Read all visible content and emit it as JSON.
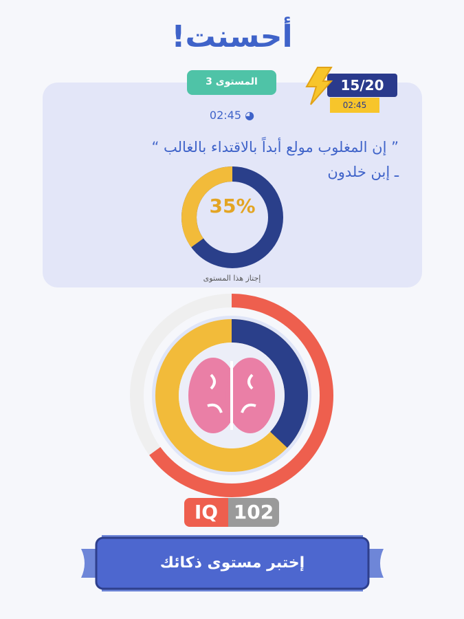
{
  "title": "أحسنت!",
  "level_badge": "المستوى 3",
  "score": {
    "value": "15/20",
    "time": "02:45"
  },
  "timer": {
    "icon": "clock-icon",
    "value": "02:45"
  },
  "quote": {
    "text": "” إن المغلوب مولع أبداً بالاقتداء بالغالب “",
    "author": "ـ إبن خلدون"
  },
  "progress": {
    "percent_label": "35%",
    "percent": 35,
    "caption": "إجتاز هذا المستوى"
  },
  "iq": {
    "label": "IQ",
    "value": "102",
    "outer_ring_fraction": 0.65,
    "inner_ring_fraction": 0.37
  },
  "cta_button": "إختبر مستوى ذكائك",
  "colors": {
    "accent": "#3f63c9",
    "navy": "#2a3a8c",
    "yellow": "#f2bb3a",
    "red": "#ee5f4e",
    "green": "#4fc3a7",
    "pink": "#ea7fa6"
  }
}
